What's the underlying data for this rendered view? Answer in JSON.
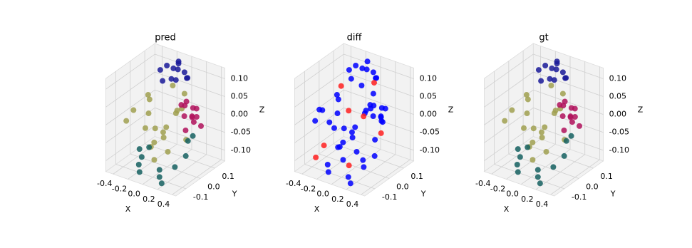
{
  "chart_data": [
    {
      "type": "scatter3d",
      "title": "pred",
      "xlabel": "X",
      "ylabel": "Y",
      "zlabel": "Z",
      "xlim": [
        -0.5,
        0.45
      ],
      "ylim": [
        -0.17,
        0.17
      ],
      "zlim": [
        -0.13,
        0.13
      ],
      "xticks": [
        -0.4,
        -0.2,
        {
          "value": 0,
          "label": "0.0"
        },
        0.2,
        0.4
      ],
      "yticks": [
        -0.1,
        {
          "value": 0,
          "label": "0.0"
        },
        0.1
      ],
      "zticks": [
        {
          "value": -0.1,
          "label": "-0.10"
        },
        -0.05,
        {
          "value": 0,
          "label": "0.00"
        },
        0.05,
        {
          "value": 0.1,
          "label": "0.10"
        }
      ],
      "grid": true,
      "series": [
        {
          "color": "#a0a050",
          "x": [
            -0.35,
            -0.3,
            -0.25,
            -0.2,
            -0.15,
            -0.1,
            -0.05,
            0,
            0.05,
            0.1,
            -0.32,
            -0.22,
            -0.12,
            -0.02,
            0.08,
            -0.28,
            -0.18,
            -0.08,
            0.02,
            0.12
          ],
          "y": [
            0.05,
            -0.08,
            0.1,
            -0.02,
            0.07,
            -0.1,
            0.03,
            0.12,
            -0.05,
            0.08,
            -0.12,
            0,
            0.1,
            -0.08,
            0.02,
            0.06,
            -0.04,
            0.11,
            -0.1,
            0.04
          ],
          "z": [
            -0.02,
            0.03,
            -0.08,
            0.05,
            -0.05,
            0,
            -0.1,
            0.04,
            -0.03,
            -0.07,
            0.01,
            -0.09,
            0.06,
            -0.04,
            0.02,
            -0.06,
            0.07,
            -0.01,
            -0.08,
            0.03
          ]
        },
        {
          "color": "#1a1a99",
          "x": [
            -0.25,
            -0.2,
            -0.15,
            -0.1,
            -0.05,
            0,
            0.05,
            0.1,
            -0.18,
            -0.08,
            0.02,
            -0.12
          ],
          "y": [
            0.08,
            0.1,
            0.12,
            0.13,
            0.1,
            0.12,
            0.11,
            0.09,
            0.06,
            0.07,
            0.05,
            0.14
          ],
          "z": [
            0.1,
            0.11,
            0.1,
            0.12,
            0.11,
            0.1,
            0.09,
            0.1,
            0.08,
            0.09,
            0.1,
            0.11
          ]
        },
        {
          "color": "#b0125c",
          "x": [
            0.2,
            0.25,
            0.3,
            0.35,
            0.4,
            0.22,
            0.28,
            0.33,
            0.38,
            0.25,
            0.3,
            0.36
          ],
          "y": [
            0.02,
            -0.03,
            0.05,
            0,
            -0.02,
            0.06,
            0.03,
            -0.05,
            0.04,
            0,
            -0.02,
            0.02
          ],
          "z": [
            0.05,
            0.07,
            0.04,
            0.06,
            0.03,
            0.01,
            0.02,
            0.05,
            0,
            -0.01,
            0.08,
            0.03
          ]
        },
        {
          "color": "#156060",
          "x": [
            -0.15,
            -0.14,
            -0.13,
            0.15,
            0.16,
            0.15,
            0.35,
            0.36,
            0.3,
            -0.05,
            0.25,
            -0.16
          ],
          "y": [
            -0.12,
            -0.12,
            -0.11,
            -0.13,
            -0.12,
            -0.13,
            -0.05,
            -0.04,
            -0.1,
            -0.1,
            0.05,
            -0.11
          ],
          "z": [
            -0.1,
            -0.12,
            -0.08,
            -0.11,
            -0.13,
            -0.09,
            -0.06,
            -0.02,
            -0.08,
            -0.05,
            -0.04,
            -0.06
          ]
        }
      ]
    },
    {
      "type": "scatter3d",
      "title": "diff",
      "xlabel": "X",
      "ylabel": "Y",
      "zlabel": "Z",
      "xlim": [
        -0.5,
        0.45
      ],
      "ylim": [
        -0.17,
        0.17
      ],
      "zlim": [
        -0.13,
        0.13
      ],
      "xticks": [
        -0.4,
        -0.2,
        {
          "value": 0,
          "label": "0.0"
        },
        0.2,
        0.4
      ],
      "yticks": [
        -0.1,
        {
          "value": 0,
          "label": "0.0"
        },
        0.1
      ],
      "zticks": [
        {
          "value": -0.1,
          "label": "-0.10"
        },
        -0.05,
        {
          "value": 0,
          "label": "0.00"
        },
        0.05,
        {
          "value": 0.1,
          "label": "0.10"
        }
      ],
      "grid": true,
      "series": [
        {
          "color": "#0000ff",
          "x": [
            -0.35,
            -0.3,
            -0.25,
            -0.2,
            -0.15,
            -0.1,
            -0.05,
            0,
            0.05,
            0.1,
            -0.32,
            -0.22,
            -0.12,
            -0.02,
            0.08,
            -0.28,
            -0.18,
            -0.08,
            0.02,
            0.12,
            -0.25,
            -0.2,
            -0.15,
            -0.1,
            -0.05,
            0,
            0.05,
            0.1,
            0.2,
            0.25,
            0.3,
            0.35,
            0.4,
            0.22,
            0.28,
            0.33,
            -0.15,
            -0.14,
            0.15,
            0.16,
            0.35,
            0.3,
            -0.05,
            -0.4,
            -0.38,
            0.15,
            0.25,
            -0.3
          ],
          "y": [
            0.05,
            -0.08,
            0.1,
            -0.02,
            0.07,
            -0.1,
            0.03,
            0.12,
            -0.05,
            0.08,
            -0.12,
            0,
            0.1,
            -0.08,
            0.02,
            0.06,
            -0.04,
            0.11,
            -0.1,
            0.04,
            0.08,
            0.1,
            0.12,
            0.13,
            0.1,
            0.12,
            0.11,
            0.09,
            0.02,
            -0.03,
            0.05,
            0,
            -0.02,
            0.06,
            0.03,
            -0.05,
            -0.12,
            -0.12,
            -0.13,
            -0.12,
            -0.05,
            -0.1,
            -0.1,
            0.02,
            -0.06,
            0.1,
            -0.08,
            0.12
          ],
          "z": [
            -0.02,
            0.03,
            -0.08,
            0.05,
            -0.05,
            0,
            -0.1,
            0.04,
            -0.03,
            -0.07,
            0.01,
            -0.09,
            0.06,
            -0.04,
            0.02,
            -0.06,
            0.07,
            -0.01,
            -0.08,
            0.03,
            0.1,
            0.11,
            0.1,
            0.12,
            0.11,
            0.1,
            0.09,
            0.1,
            0.05,
            0.07,
            0.04,
            0.06,
            0.03,
            0.01,
            0.02,
            0.05,
            -0.1,
            -0.12,
            -0.11,
            -0.13,
            -0.06,
            -0.08,
            -0.05,
            -0.04,
            0.02,
            -0.02,
            -0.07,
            0.06
          ]
        },
        {
          "color": "#ff2020",
          "x": [
            -0.35,
            -0.3,
            -0.1,
            0.05,
            0.2,
            0.3,
            -0.2,
            0.1
          ],
          "y": [
            -0.1,
            0.05,
            0,
            0.1,
            -0.05,
            0.02,
            -0.12,
            -0.1
          ],
          "z": [
            -0.1,
            0.06,
            0.02,
            0.08,
            0.04,
            -0.02,
            -0.05,
            -0.09
          ]
        }
      ]
    },
    {
      "type": "scatter3d",
      "title": "gt",
      "xlabel": "X",
      "ylabel": "Y",
      "zlabel": "Z",
      "xlim": [
        -0.5,
        0.45
      ],
      "ylim": [
        -0.17,
        0.17
      ],
      "zlim": [
        -0.13,
        0.13
      ],
      "xticks": [
        -0.4,
        -0.2,
        {
          "value": 0,
          "label": "0.0"
        },
        0.2,
        0.4
      ],
      "yticks": [
        -0.1,
        {
          "value": 0,
          "label": "0.0"
        },
        0.1
      ],
      "zticks": [
        {
          "value": -0.1,
          "label": "-0.10"
        },
        -0.05,
        {
          "value": 0,
          "label": "0.00"
        },
        0.05,
        {
          "value": 0.1,
          "label": "0.10"
        }
      ],
      "grid": true,
      "series": [
        {
          "color": "#a0a050",
          "x": [
            -0.35,
            -0.3,
            -0.25,
            -0.2,
            -0.15,
            -0.1,
            -0.05,
            0,
            0.05,
            0.1,
            -0.32,
            -0.22,
            -0.12,
            -0.02,
            0.08,
            -0.28,
            -0.18,
            -0.08,
            0.02,
            0.12
          ],
          "y": [
            0.05,
            -0.08,
            0.1,
            -0.02,
            0.07,
            -0.1,
            0.03,
            0.12,
            -0.05,
            0.08,
            -0.12,
            0,
            0.1,
            -0.08,
            0.02,
            0.06,
            -0.04,
            0.11,
            -0.1,
            0.04
          ],
          "z": [
            -0.02,
            0.03,
            -0.08,
            0.05,
            -0.05,
            0,
            -0.1,
            0.04,
            -0.03,
            -0.07,
            0.01,
            -0.09,
            0.06,
            -0.04,
            0.02,
            -0.06,
            0.07,
            -0.01,
            -0.08,
            0.03
          ]
        },
        {
          "color": "#1a1a99",
          "x": [
            -0.25,
            -0.2,
            -0.15,
            -0.1,
            -0.05,
            0,
            0.05,
            0.1,
            -0.18,
            -0.08,
            0.02,
            -0.12
          ],
          "y": [
            0.08,
            0.1,
            0.12,
            0.13,
            0.1,
            0.12,
            0.11,
            0.09,
            0.06,
            0.07,
            0.05,
            0.14
          ],
          "z": [
            0.1,
            0.11,
            0.1,
            0.12,
            0.11,
            0.1,
            0.09,
            0.1,
            0.08,
            0.09,
            0.1,
            0.11
          ]
        },
        {
          "color": "#b0125c",
          "x": [
            0.2,
            0.25,
            0.3,
            0.35,
            0.4,
            0.22,
            0.28,
            0.33,
            0.38,
            0.25,
            0.3,
            0.36
          ],
          "y": [
            0.02,
            -0.03,
            0.05,
            0,
            -0.02,
            0.06,
            0.03,
            -0.05,
            0.04,
            0,
            -0.02,
            0.02
          ],
          "z": [
            0.05,
            0.07,
            0.04,
            0.06,
            0.03,
            0.01,
            0.02,
            0.05,
            0,
            -0.01,
            0.08,
            0.03
          ]
        },
        {
          "color": "#156060",
          "x": [
            -0.15,
            -0.14,
            -0.13,
            0.15,
            0.16,
            0.15,
            0.35,
            0.36,
            0.3,
            -0.05,
            0.25,
            -0.16
          ],
          "y": [
            -0.12,
            -0.12,
            -0.11,
            -0.13,
            -0.12,
            -0.13,
            -0.05,
            -0.04,
            -0.1,
            -0.1,
            0.05,
            -0.11
          ],
          "z": [
            -0.1,
            -0.12,
            -0.08,
            -0.11,
            -0.13,
            -0.09,
            -0.06,
            -0.02,
            -0.08,
            -0.05,
            -0.04,
            -0.06
          ]
        }
      ]
    }
  ]
}
